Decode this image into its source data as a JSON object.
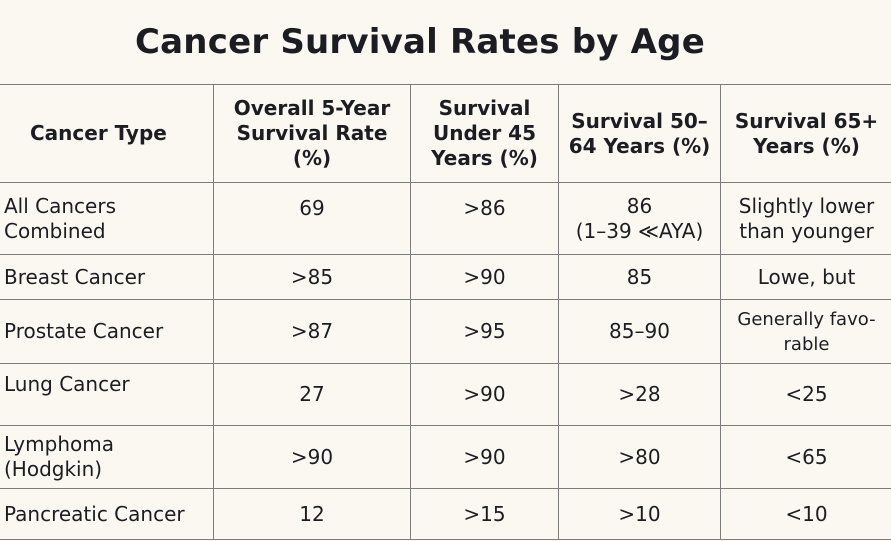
{
  "title": "Cancer Survival Rates by Age",
  "table": {
    "headers": [
      "Cancer Type",
      "Overall 5-Year Survival Rate (%)",
      "Survival Under 45 Years (%)",
      "Survival 50–64 Years (%)",
      "Survival 65+ Years (%)"
    ],
    "rows": [
      {
        "type_line1": "All Cancers",
        "type_line2": "Combined",
        "overall": "69",
        "under45": ">86",
        "age50_64_line1": "86",
        "age50_64_line2": "(1–39 ≪AYA)",
        "age65_line1": "Slightly lower",
        "age65_line2": "than younger"
      },
      {
        "type": "Breast Cancer",
        "overall": ">85",
        "under45": ">90",
        "age50_64": "85",
        "age65": "Lowe, but"
      },
      {
        "type": "Prostate Cancer",
        "overall": ">87",
        "under45": ">95",
        "age50_64": "85–90",
        "age65_line1": "Generally favo-",
        "age65_line2": "rable"
      },
      {
        "type": "Lung Cancer",
        "overall": "27",
        "under45": ">90",
        "age50_64": ">28",
        "age65": "<25"
      },
      {
        "type_line1": "Lymphoma",
        "type_line2": "(Hodgkin)",
        "overall": ">90",
        "under45": ">90",
        "age50_64": ">80",
        "age65": "<65"
      },
      {
        "type": "Pancreatic Cancer",
        "overall": "12",
        "under45": ">15",
        "age50_64": ">10",
        "age65": "<10"
      }
    ]
  }
}
